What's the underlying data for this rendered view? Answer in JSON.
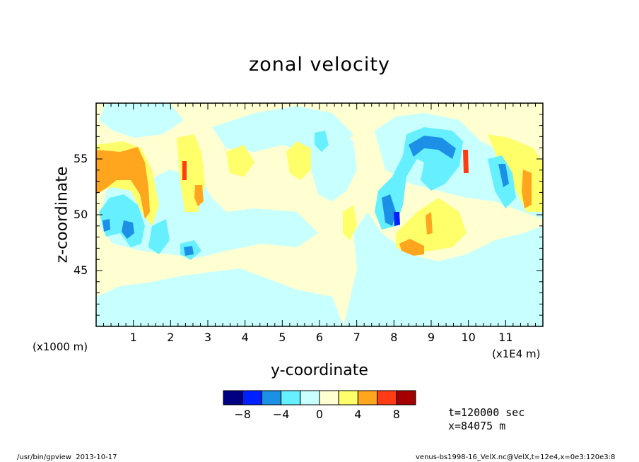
{
  "chart_data": {
    "type": "heatmap",
    "title": "zonal velocity",
    "xlabel": "y-coordinate",
    "ylabel": "z-coordinate",
    "x_unit_left": "(x1000 m)",
    "x_unit_right": "(x1E4 m)",
    "xlim": [
      0,
      12
    ],
    "ylim": [
      40,
      60
    ],
    "x_ticks": [
      1,
      2,
      3,
      4,
      5,
      6,
      7,
      8,
      9,
      10,
      11
    ],
    "y_ticks": [
      45,
      50,
      55
    ],
    "colorbar": {
      "bounds": [
        -10,
        -8,
        -6,
        -4,
        -2,
        0,
        2,
        4,
        6,
        8,
        10
      ],
      "labels": [
        "-8",
        "-4",
        "0",
        "4",
        "8"
      ],
      "colors": [
        "#000080",
        "#0020ff",
        "#1c90e6",
        "#66f0ff",
        "#c8ffff",
        "#ffffd2",
        "#ffff6a",
        "#ffa51e",
        "#ff3c14",
        "#a50000"
      ]
    },
    "info": [
      "t=120000 sec",
      "x=84075 m"
    ]
  },
  "footer": {
    "left": "/usr/bin/gpview  2013-10-17",
    "right": "venus-bs1998-16_VelX.nc@VelX,t=12e4,x=0e3:120e3:8"
  }
}
